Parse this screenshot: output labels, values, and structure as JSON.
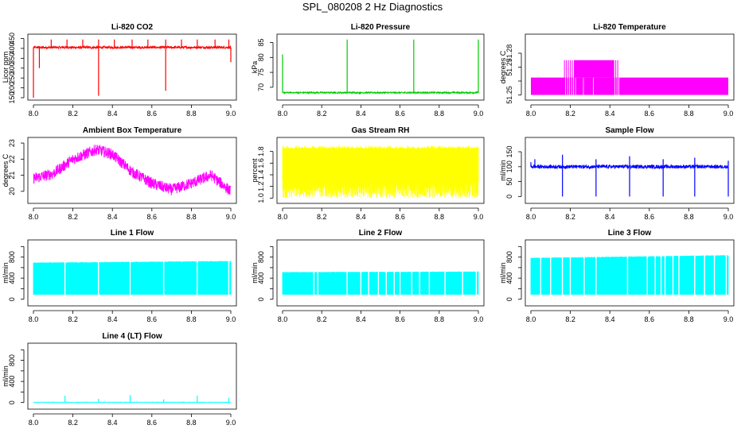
{
  "title": "SPL_080208  2 Hz Diagnostics",
  "chart_data": [
    {
      "id": "co2",
      "type": "line",
      "title": "Li-820 CO2",
      "ylabel": "Licor ppm",
      "color": "#ff0000",
      "xlim": [
        8.0,
        9.0
      ],
      "ylim": [
        150,
        460
      ],
      "xticks": [
        8.0,
        8.2,
        8.4,
        8.6,
        8.8,
        9.0
      ],
      "xtick_labels": [
        "8.0",
        "8.2",
        "8.4",
        "8.6",
        "8.8",
        "9.0"
      ],
      "yticks": [
        150,
        200,
        250,
        300,
        350,
        400,
        450
      ],
      "ytick_labels": [
        "150",
        "200",
        "250",
        "300",
        "350",
        "400",
        "450"
      ],
      "baseline": 405,
      "noise": 6,
      "spikes": [
        [
          8.0,
          150
        ],
        [
          8.03,
          300
        ],
        [
          8.09,
          445
        ],
        [
          8.17,
          445
        ],
        [
          8.25,
          445
        ],
        [
          8.33,
          160
        ],
        [
          8.33,
          445
        ],
        [
          8.41,
          445
        ],
        [
          8.5,
          445
        ],
        [
          8.58,
          445
        ],
        [
          8.67,
          185
        ],
        [
          8.67,
          445
        ],
        [
          8.75,
          445
        ],
        [
          8.83,
          445
        ],
        [
          8.92,
          445
        ],
        [
          8.99,
          445
        ],
        [
          9.0,
          330
        ]
      ]
    },
    {
      "id": "pressure",
      "type": "line",
      "title": "Li-820 Pressure",
      "ylabel": "kPa",
      "color": "#00cc00",
      "xlim": [
        8.0,
        9.0
      ],
      "ylim": [
        66.5,
        87
      ],
      "xticks": [
        8.0,
        8.2,
        8.4,
        8.6,
        8.8,
        9.0
      ],
      "xtick_labels": [
        "8.0",
        "8.2",
        "8.4",
        "8.6",
        "8.8",
        "9.0"
      ],
      "yticks": [
        70,
        75,
        80,
        85
      ],
      "ytick_labels": [
        "70",
        "75",
        "80",
        "85"
      ],
      "baseline": 68.2,
      "noise": 0.25,
      "spikes": [
        [
          8.0,
          81
        ],
        [
          8.33,
          86
        ],
        [
          8.67,
          86
        ],
        [
          9.0,
          86
        ]
      ]
    },
    {
      "id": "temperature",
      "type": "step",
      "title": "Li-820 Temperature",
      "ylabel": "degrees C",
      "color": "#ff00ff",
      "xlim": [
        8.0,
        9.0
      ],
      "ylim": [
        51.248,
        51.292
      ],
      "xticks": [
        8.0,
        8.2,
        8.4,
        8.6,
        8.8,
        9.0
      ],
      "xtick_labels": [
        "8.0",
        "8.2",
        "8.4",
        "8.6",
        "8.8",
        "9.0"
      ],
      "yticks": [
        51.25,
        51.26,
        51.27,
        51.28
      ],
      "ytick_labels": [
        "51.25",
        "",
        "51.27",
        "51.28"
      ],
      "low": 51.25,
      "high": 51.2625,
      "high2": 51.275,
      "high_blocks": [
        [
          8.0,
          9.0
        ]
      ],
      "top_block": [
        8.22,
        8.42
      ],
      "flicker": [
        8.17,
        8.18,
        8.19,
        8.2,
        8.21,
        8.22,
        8.26,
        8.31,
        8.42,
        8.43,
        8.44
      ]
    },
    {
      "id": "ambient",
      "type": "line",
      "title": "Ambient Box Temperature",
      "ylabel": "degrees C",
      "color": "#ff00ff",
      "xlim": [
        8.0,
        9.0
      ],
      "ylim": [
        19.4,
        23.2
      ],
      "xticks": [
        8.0,
        8.2,
        8.4,
        8.6,
        8.8,
        9.0
      ],
      "xtick_labels": [
        "8.0",
        "8.2",
        "8.4",
        "8.6",
        "8.8",
        "9.0"
      ],
      "yticks": [
        20,
        21,
        22,
        23
      ],
      "ytick_labels": [
        "20",
        "21",
        "22",
        "23"
      ],
      "curve": [
        [
          8.0,
          20.8
        ],
        [
          8.1,
          21.1
        ],
        [
          8.2,
          22.0
        ],
        [
          8.32,
          22.6
        ],
        [
          8.4,
          22.3
        ],
        [
          8.5,
          21.2
        ],
        [
          8.6,
          20.5
        ],
        [
          8.7,
          20.1
        ],
        [
          8.8,
          20.5
        ],
        [
          8.9,
          21.0
        ],
        [
          9.0,
          20.0
        ]
      ],
      "noise": 0.35
    },
    {
      "id": "rh",
      "type": "band",
      "title": "Gas Stream RH",
      "ylabel": "percent",
      "color": "#ffff00",
      "xlim": [
        8.0,
        9.0
      ],
      "ylim": [
        0.95,
        2.0
      ],
      "xticks": [
        8.0,
        8.2,
        8.4,
        8.6,
        8.8,
        9.0
      ],
      "xtick_labels": [
        "8.0",
        "8.2",
        "8.4",
        "8.6",
        "8.8",
        "9.0"
      ],
      "yticks": [
        1.0,
        1.2,
        1.4,
        1.6,
        1.8
      ],
      "ytick_labels": [
        "1.0",
        "1.2",
        "1.4",
        "1.6",
        "1.8"
      ],
      "band_low": 1.3,
      "band_high": 1.85,
      "noise_min": 1.0,
      "noise_max": 1.9
    },
    {
      "id": "sample",
      "type": "line",
      "title": "Sample Flow",
      "ylabel": "ml/min",
      "color": "#0000ff",
      "xlim": [
        8.0,
        9.0
      ],
      "ylim": [
        -15,
        190
      ],
      "xticks": [
        8.0,
        8.2,
        8.4,
        8.6,
        8.8,
        9.0
      ],
      "xtick_labels": [
        "8.0",
        "8.2",
        "8.4",
        "8.6",
        "8.8",
        "9.0"
      ],
      "yticks": [
        0,
        50,
        100,
        150
      ],
      "ytick_labels": [
        "0",
        "50",
        "100",
        "150"
      ],
      "baseline": 100,
      "noise": 6,
      "spikes": [
        [
          8.0,
          115
        ],
        [
          8.02,
          125
        ],
        [
          8.16,
          140
        ],
        [
          8.16,
          0
        ],
        [
          8.33,
          125
        ],
        [
          8.33,
          0
        ],
        [
          8.5,
          135
        ],
        [
          8.5,
          0
        ],
        [
          8.67,
          125
        ],
        [
          8.67,
          0
        ],
        [
          8.83,
          130
        ],
        [
          8.83,
          0
        ],
        [
          9.0,
          120
        ],
        [
          9.0,
          0
        ]
      ]
    },
    {
      "id": "line1",
      "type": "band",
      "title": "Line 1 Flow",
      "ylabel": "ml/min",
      "color": "#00ffff",
      "xlim": [
        8.0,
        9.0
      ],
      "ylim": [
        -80,
        1080
      ],
      "xticks": [
        8.0,
        8.2,
        8.4,
        8.6,
        8.8,
        9.0
      ],
      "xtick_labels": [
        "8.0",
        "8.2",
        "8.4",
        "8.6",
        "8.8",
        "9.0"
      ],
      "yticks": [
        0,
        200,
        400,
        600,
        800,
        1000
      ],
      "ytick_labels": [
        "0",
        "",
        "400",
        "",
        "800",
        ""
      ],
      "band_low": 90,
      "band_high": 690,
      "band_high_end": 720,
      "gaps": [
        8.16,
        8.33,
        8.49,
        8.66,
        8.83,
        8.99
      ]
    },
    {
      "id": "line2",
      "type": "band",
      "title": "Line 2 Flow",
      "ylabel": "ml/min",
      "color": "#00ffff",
      "xlim": [
        8.0,
        9.0
      ],
      "ylim": [
        -80,
        1080
      ],
      "xticks": [
        8.0,
        8.2,
        8.4,
        8.6,
        8.8,
        9.0
      ],
      "xtick_labels": [
        "8.0",
        "8.2",
        "8.4",
        "8.6",
        "8.8",
        "9.0"
      ],
      "yticks": [
        0,
        200,
        400,
        600,
        800,
        1000
      ],
      "ytick_labels": [
        "0",
        "",
        "400",
        "",
        "800",
        ""
      ],
      "band_low": 90,
      "band_high": 510,
      "band_high_end": 520,
      "gaps": [
        8.16,
        8.18,
        8.33,
        8.4,
        8.44,
        8.49,
        8.53,
        8.57,
        8.6,
        8.66,
        8.7,
        8.75,
        8.83,
        8.92,
        8.99
      ]
    },
    {
      "id": "line3",
      "type": "band",
      "title": "Line 3 Flow",
      "ylabel": "ml/min",
      "color": "#00ffff",
      "xlim": [
        8.0,
        9.0
      ],
      "ylim": [
        -80,
        1080
      ],
      "xticks": [
        8.0,
        8.2,
        8.4,
        8.6,
        8.8,
        9.0
      ],
      "xtick_labels": [
        "8.0",
        "8.2",
        "8.4",
        "8.6",
        "8.8",
        "9.0"
      ],
      "yticks": [
        0,
        200,
        400,
        600,
        800,
        1000
      ],
      "ytick_labels": [
        "0",
        "",
        "400",
        "",
        "800",
        ""
      ],
      "band_low": 90,
      "band_high": 780,
      "band_high_end": 830,
      "gaps": [
        8.05,
        8.1,
        8.16,
        8.2,
        8.27,
        8.33,
        8.49,
        8.59,
        8.63,
        8.66,
        8.68,
        8.72,
        8.75,
        8.83,
        8.88,
        8.93,
        8.99
      ]
    },
    {
      "id": "line4",
      "type": "line",
      "title": "Line 4 (LT) Flow",
      "ylabel": "ml/min",
      "color": "#00ffff",
      "xlim": [
        8.0,
        9.0
      ],
      "ylim": [
        -80,
        1080
      ],
      "xticks": [
        8.0,
        8.2,
        8.4,
        8.6,
        8.8,
        9.0
      ],
      "xtick_labels": [
        "8.0",
        "8.2",
        "8.4",
        "8.6",
        "8.8",
        "9.0"
      ],
      "yticks": [
        0,
        200,
        400,
        600,
        800,
        1000
      ],
      "ytick_labels": [
        "0",
        "",
        "400",
        "",
        "800",
        ""
      ],
      "baseline": 5,
      "noise": 3,
      "spikes": [
        [
          8.16,
          130
        ],
        [
          8.33,
          70
        ],
        [
          8.49,
          140
        ],
        [
          8.66,
          60
        ],
        [
          8.83,
          130
        ],
        [
          8.99,
          90
        ]
      ]
    }
  ]
}
